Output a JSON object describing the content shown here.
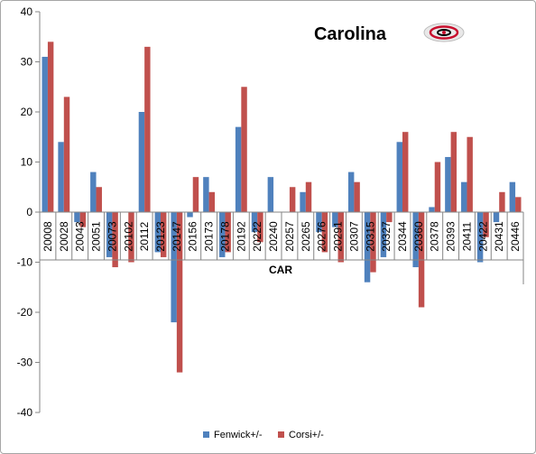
{
  "chart_data": {
    "type": "bar",
    "title": "Carolina",
    "xlabel": "CAR",
    "ylabel": "",
    "ylim": [
      -40,
      40
    ],
    "yticks": [
      -40,
      -30,
      -20,
      -10,
      0,
      10,
      20,
      30,
      40
    ],
    "grid": false,
    "legend_position": "bottom",
    "categories": [
      "20008",
      "20028",
      "20043",
      "20051",
      "20073",
      "20102",
      "20112",
      "20123",
      "20147",
      "20156",
      "20173",
      "20178",
      "20192",
      "20222",
      "20240",
      "20257",
      "20265",
      "20276",
      "20291",
      "20307",
      "20315",
      "20327",
      "20344",
      "20360",
      "20378",
      "20393",
      "20411",
      "20422",
      "20431",
      "20446"
    ],
    "series": [
      {
        "name": "Fenwick+/-",
        "color": "#4f81bd",
        "values": [
          31,
          14,
          -2,
          8,
          -9,
          0,
          20,
          -8,
          -22,
          -1,
          7,
          -9,
          17,
          -4,
          7,
          0,
          4,
          -4,
          -3,
          8,
          -14,
          -9,
          14,
          -11,
          1,
          11,
          6,
          -10,
          -2,
          6
        ]
      },
      {
        "name": "Corsi+/-",
        "color": "#c0504d",
        "values": [
          34,
          23,
          -3,
          5,
          -11,
          -10,
          33,
          -9,
          -32,
          7,
          4,
          -8,
          25,
          -6,
          0,
          5,
          6,
          -8,
          -10,
          6,
          -12,
          -2,
          16,
          -19,
          10,
          16,
          15,
          -5,
          4,
          3
        ]
      }
    ]
  },
  "logo": {
    "name": "hurricanes-logo"
  }
}
